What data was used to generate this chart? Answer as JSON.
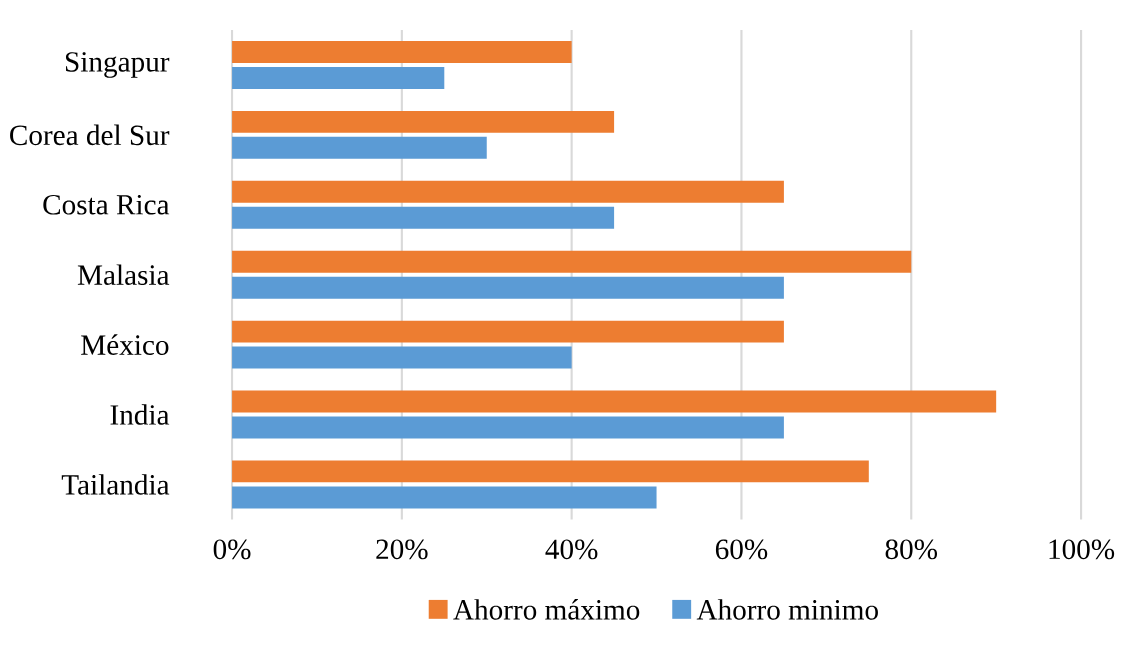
{
  "chart_data": {
    "type": "bar",
    "orientation": "horizontal",
    "categories": [
      "Singapur",
      "Corea del Sur",
      "Costa Rica",
      "Malasia",
      "México",
      "India",
      "Tailandia"
    ],
    "series": [
      {
        "name": "Ahorro máximo",
        "color": "#ed7d31",
        "values": [
          40,
          45,
          65,
          80,
          65,
          90,
          75
        ]
      },
      {
        "name": "Ahorro minimo",
        "color": "#5b9bd5",
        "values": [
          25,
          30,
          45,
          65,
          40,
          65,
          50
        ]
      }
    ],
    "xlim": [
      0,
      100
    ],
    "xticks": [
      {
        "value": 0,
        "label": "0%"
      },
      {
        "value": 20,
        "label": "20%"
      },
      {
        "value": 40,
        "label": "40%"
      },
      {
        "value": 60,
        "label": "60%"
      },
      {
        "value": 80,
        "label": "80%"
      },
      {
        "value": 100,
        "label": "100%"
      }
    ],
    "grid": "x",
    "legend": "bottom"
  }
}
